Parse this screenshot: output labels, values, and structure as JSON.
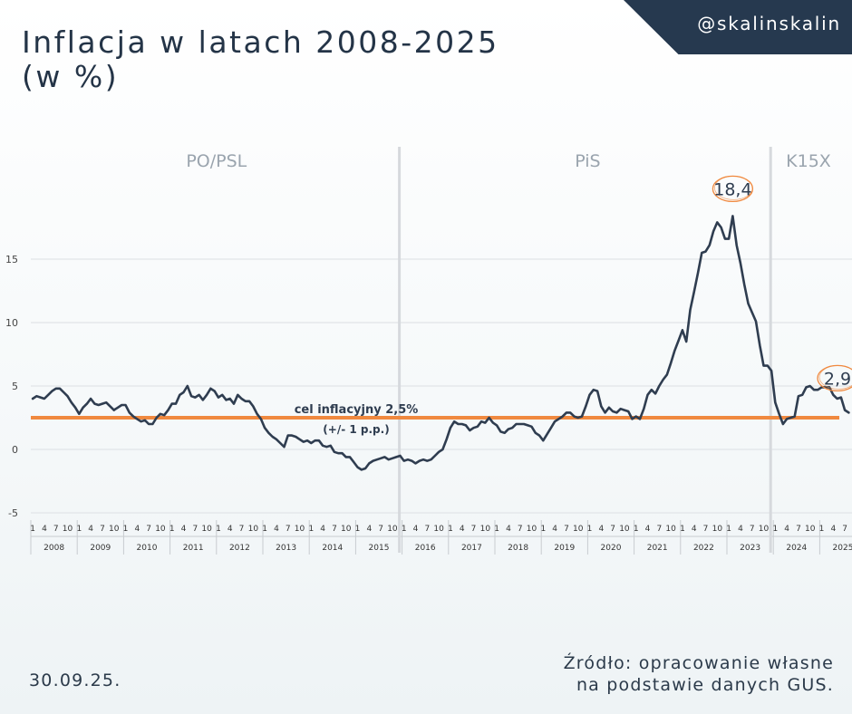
{
  "header": {
    "title_line1": "Inflacja w latach 2008-2025",
    "title_line2": "(w %)",
    "handle": "@skalinskalin"
  },
  "footer": {
    "date": "30.09.25.",
    "source_line1": "Źródło: opracowanie własne",
    "source_line2": "na podstawie danych GUS."
  },
  "colors": {
    "line": "#2f3d50",
    "target": "#f0893f",
    "grid": "#dcdfe3",
    "separator": "#d6d9dd",
    "period_label": "#9aa4ae",
    "highlight_circle": "#f0893f"
  },
  "chart_data": {
    "type": "line",
    "title": "Inflacja w latach 2008-2025 (w %)",
    "ylim": [
      -5,
      20
    ],
    "yticks": [
      "-5",
      "0",
      "5",
      "10",
      "15"
    ],
    "grid": true,
    "x_month_ticks": [
      "1",
      "4",
      "7",
      "10"
    ],
    "years": [
      "2008",
      "2009",
      "2010",
      "2011",
      "2012",
      "2013",
      "2014",
      "2015",
      "2016",
      "2017",
      "2018",
      "2019",
      "2020",
      "2021",
      "2022",
      "2023",
      "2024",
      "2025"
    ],
    "periods": [
      {
        "label": "PO/PSL",
        "start_year": 2008,
        "end_year": 2015
      },
      {
        "label": "PiS",
        "start_year": 2016,
        "end_year": 2023
      },
      {
        "label": "K15X",
        "start_year": 2024,
        "end_year": 2025
      }
    ],
    "target": {
      "value": 2.5,
      "label_line1": "cel inflacyjny 2,5%",
      "label_line2": "(+/- 1 p.p.)"
    },
    "annotations": [
      {
        "text": "18,4",
        "year": 2023,
        "month": 2,
        "value": 18.4
      },
      {
        "text": "2,9",
        "year": 2025,
        "month": 8,
        "value": 2.9
      }
    ],
    "series": [
      {
        "start_year": 2008,
        "start_month": 1,
        "values": [
          4.0,
          4.2,
          4.1,
          4.0,
          4.3,
          4.6,
          4.8,
          4.8,
          4.5,
          4.2,
          3.7,
          3.3,
          2.8,
          3.3,
          3.6,
          4.0,
          3.6,
          3.5,
          3.6,
          3.7,
          3.4,
          3.1,
          3.3,
          3.5,
          3.5,
          2.9,
          2.6,
          2.4,
          2.2,
          2.3,
          2.0,
          2.0,
          2.5,
          2.8,
          2.7,
          3.1,
          3.6,
          3.6,
          4.3,
          4.5,
          5.0,
          4.2,
          4.1,
          4.3,
          3.9,
          4.3,
          4.8,
          4.6,
          4.1,
          4.3,
          3.9,
          4.0,
          3.6,
          4.3,
          4.0,
          3.8,
          3.8,
          3.4,
          2.8,
          2.4,
          1.7,
          1.3,
          1.0,
          0.8,
          0.5,
          0.2,
          1.1,
          1.1,
          1.0,
          0.8,
          0.6,
          0.7,
          0.5,
          0.7,
          0.7,
          0.3,
          0.2,
          0.3,
          -0.2,
          -0.3,
          -0.3,
          -0.6,
          -0.6,
          -1.0,
          -1.4,
          -1.6,
          -1.5,
          -1.1,
          -0.9,
          -0.8,
          -0.7,
          -0.6,
          -0.8,
          -0.7,
          -0.6,
          -0.5,
          -0.9,
          -0.8,
          -0.9,
          -1.1,
          -0.9,
          -0.8,
          -0.9,
          -0.8,
          -0.5,
          -0.2,
          0.0,
          0.8,
          1.7,
          2.2,
          2.0,
          2.0,
          1.9,
          1.5,
          1.7,
          1.8,
          2.2,
          2.1,
          2.5,
          2.1,
          1.9,
          1.4,
          1.3,
          1.6,
          1.7,
          2.0,
          2.0,
          2.0,
          1.9,
          1.8,
          1.3,
          1.1,
          0.7,
          1.2,
          1.7,
          2.2,
          2.4,
          2.6,
          2.9,
          2.9,
          2.6,
          2.5,
          2.6,
          3.4,
          4.3,
          4.7,
          4.6,
          3.4,
          2.9,
          3.3,
          3.0,
          2.9,
          3.2,
          3.1,
          3.0,
          2.4,
          2.6,
          2.4,
          3.2,
          4.3,
          4.7,
          4.4,
          5.0,
          5.5,
          5.9,
          6.8,
          7.8,
          8.6,
          9.4,
          8.5,
          11.0,
          12.4,
          13.9,
          15.5,
          15.6,
          16.1,
          17.2,
          17.9,
          17.5,
          16.6,
          16.6,
          18.4,
          16.1,
          14.7,
          13.0,
          11.5,
          10.8,
          10.1,
          8.2,
          6.6,
          6.6,
          6.2,
          3.7,
          2.8,
          2.0,
          2.4,
          2.5,
          2.6,
          4.2,
          4.3,
          4.9,
          5.0,
          4.7,
          4.7,
          4.9,
          4.9,
          4.9,
          4.3,
          4.0,
          4.1,
          3.1,
          2.9
        ]
      }
    ]
  }
}
